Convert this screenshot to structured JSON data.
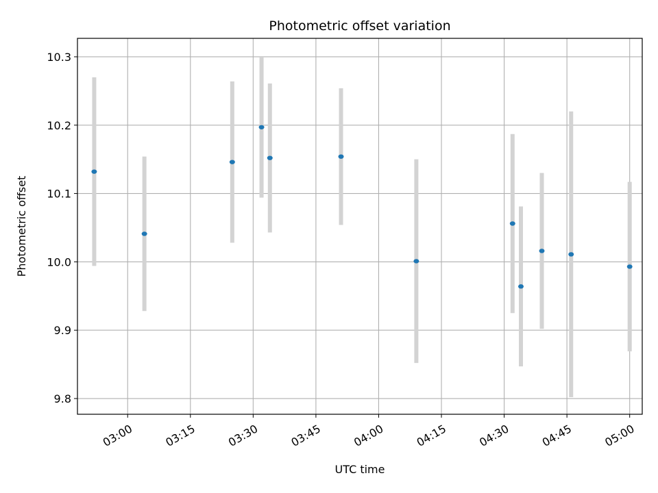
{
  "chart_data": {
    "type": "scatter",
    "title": "Photometric offset variation",
    "xlabel": "UTC time",
    "ylabel": "Photometric offset",
    "xlim": [
      "02:48",
      "05:03"
    ],
    "ylim": [
      9.777,
      10.327
    ],
    "grid": true,
    "x_ticks": [
      "03:00",
      "03:15",
      "03:30",
      "03:45",
      "04:00",
      "04:15",
      "04:30",
      "04:45",
      "05:00"
    ],
    "y_ticks": [
      9.8,
      9.9,
      10.0,
      10.1,
      10.2,
      10.3
    ],
    "y_tick_labels": [
      "9.8",
      "9.9",
      "10.0",
      "10.1",
      "10.2",
      "10.3"
    ],
    "marker_color": "#1f77b4",
    "errorbar_color": "#d3d3d3",
    "points": [
      {
        "x": "02:52",
        "y": 10.132,
        "yerr": 0.138
      },
      {
        "x": "03:04",
        "y": 10.041,
        "yerr": 0.113
      },
      {
        "x": "03:25",
        "y": 10.146,
        "yerr": 0.118
      },
      {
        "x": "03:32",
        "y": 10.197,
        "yerr": 0.103
      },
      {
        "x": "03:34",
        "y": 10.152,
        "yerr": 0.109
      },
      {
        "x": "03:51",
        "y": 10.154,
        "yerr": 0.1
      },
      {
        "x": "04:09",
        "y": 10.001,
        "yerr": 0.149
      },
      {
        "x": "04:32",
        "y": 10.056,
        "yerr": 0.131
      },
      {
        "x": "04:34",
        "y": 9.964,
        "yerr": 0.117
      },
      {
        "x": "04:39",
        "y": 10.016,
        "yerr": 0.114
      },
      {
        "x": "04:46",
        "y": 10.011,
        "yerr": 0.209
      },
      {
        "x": "05:00",
        "y": 9.993,
        "yerr": 0.124
      }
    ]
  }
}
